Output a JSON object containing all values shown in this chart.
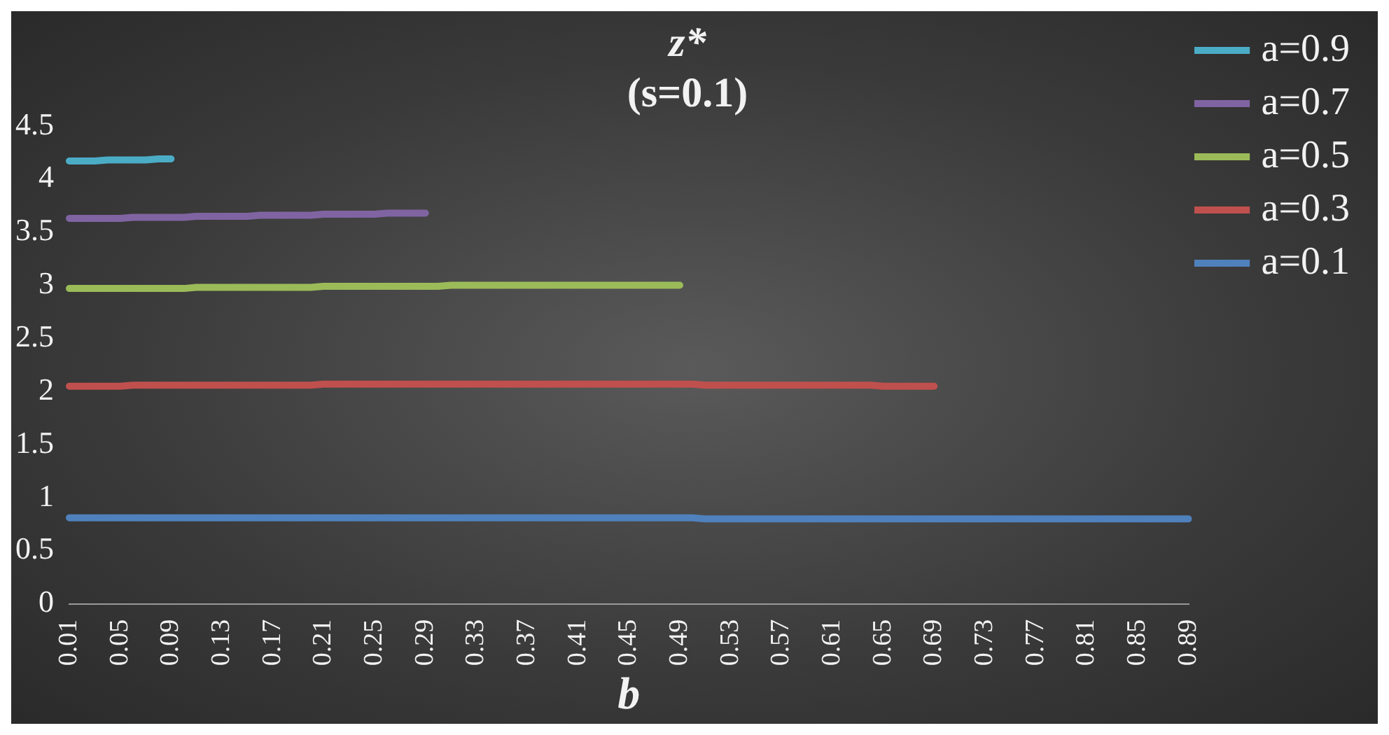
{
  "chart_data": {
    "type": "line",
    "title": "z*",
    "subtitle": "(s=0.1)",
    "xlabel": "b",
    "categories": [
      "0.01",
      null,
      null,
      null,
      "0.05",
      null,
      null,
      null,
      "0.09",
      null,
      null,
      null,
      "0.13",
      null,
      null,
      null,
      "0.17",
      null,
      null,
      null,
      "0.21",
      null,
      null,
      null,
      "0.25",
      null,
      null,
      null,
      "0.29",
      null,
      null,
      null,
      "0.33",
      null,
      null,
      null,
      "0.37",
      null,
      null,
      null,
      "0.41",
      null,
      null,
      null,
      "0.45",
      null,
      null,
      null,
      "0.49",
      null,
      null,
      null,
      "0.53",
      null,
      null,
      null,
      "0.57",
      null,
      null,
      null,
      "0.61",
      null,
      null,
      null,
      "0.65",
      null,
      null,
      null,
      "0.69",
      null,
      null,
      null,
      "0.73",
      null,
      null,
      null,
      "0.77",
      null,
      null,
      null,
      "0.81",
      null,
      null,
      null,
      "0.85",
      null,
      null,
      null,
      "0.89"
    ],
    "series": [
      {
        "name": "a=0.9",
        "color": "#4bacc6",
        "values": [
          4.17,
          4.17,
          4.17,
          4.18,
          4.18,
          4.18,
          4.18,
          4.19,
          4.19,
          null,
          null,
          null,
          null,
          null,
          null,
          null,
          null,
          null,
          null,
          null,
          null,
          null,
          null,
          null,
          null,
          null,
          null,
          null,
          null,
          null,
          null,
          null,
          null,
          null,
          null,
          null,
          null,
          null,
          null,
          null,
          null,
          null,
          null,
          null,
          null,
          null,
          null,
          null,
          null,
          null,
          null,
          null,
          null,
          null,
          null,
          null,
          null,
          null,
          null,
          null,
          null,
          null,
          null,
          null,
          null,
          null,
          null,
          null,
          null,
          null,
          null,
          null,
          null,
          null,
          null,
          null,
          null,
          null,
          null,
          null,
          null,
          null,
          null,
          null,
          null,
          null,
          null,
          null,
          null
        ]
      },
      {
        "name": "a=0.7",
        "color": "#8064a2",
        "values": [
          3.63,
          3.63,
          3.63,
          3.63,
          3.63,
          3.64,
          3.64,
          3.64,
          3.64,
          3.64,
          3.65,
          3.65,
          3.65,
          3.65,
          3.65,
          3.66,
          3.66,
          3.66,
          3.66,
          3.66,
          3.67,
          3.67,
          3.67,
          3.67,
          3.67,
          3.68,
          3.68,
          3.68,
          3.68,
          null,
          null,
          null,
          null,
          null,
          null,
          null,
          null,
          null,
          null,
          null,
          null,
          null,
          null,
          null,
          null,
          null,
          null,
          null,
          null,
          null,
          null,
          null,
          null,
          null,
          null,
          null,
          null,
          null,
          null,
          null,
          null,
          null,
          null,
          null,
          null,
          null,
          null,
          null,
          null,
          null,
          null,
          null,
          null,
          null,
          null,
          null,
          null,
          null,
          null,
          null,
          null,
          null,
          null,
          null,
          null,
          null,
          null,
          null,
          null
        ]
      },
      {
        "name": "a=0.5",
        "color": "#9bbb59",
        "values": [
          2.97,
          2.97,
          2.97,
          2.97,
          2.97,
          2.97,
          2.97,
          2.97,
          2.97,
          2.97,
          2.98,
          2.98,
          2.98,
          2.98,
          2.98,
          2.98,
          2.98,
          2.98,
          2.98,
          2.98,
          2.99,
          2.99,
          2.99,
          2.99,
          2.99,
          2.99,
          2.99,
          2.99,
          2.99,
          2.99,
          3.0,
          3.0,
          3.0,
          3.0,
          3.0,
          3.0,
          3.0,
          3.0,
          3.0,
          3.0,
          3.0,
          3.0,
          3.0,
          3.0,
          3.0,
          3.0,
          3.0,
          3.0,
          3.0,
          null,
          null,
          null,
          null,
          null,
          null,
          null,
          null,
          null,
          null,
          null,
          null,
          null,
          null,
          null,
          null,
          null,
          null,
          null,
          null,
          null,
          null,
          null,
          null,
          null,
          null,
          null,
          null,
          null,
          null,
          null,
          null,
          null,
          null,
          null,
          null,
          null,
          null,
          null,
          null
        ]
      },
      {
        "name": "a=0.3",
        "color": "#c0504d",
        "values": [
          2.05,
          2.05,
          2.05,
          2.05,
          2.05,
          2.06,
          2.06,
          2.06,
          2.06,
          2.06,
          2.06,
          2.06,
          2.06,
          2.06,
          2.06,
          2.06,
          2.06,
          2.06,
          2.06,
          2.06,
          2.07,
          2.07,
          2.07,
          2.07,
          2.07,
          2.07,
          2.07,
          2.07,
          2.07,
          2.07,
          2.07,
          2.07,
          2.07,
          2.07,
          2.07,
          2.07,
          2.07,
          2.07,
          2.07,
          2.07,
          2.07,
          2.07,
          2.07,
          2.07,
          2.07,
          2.07,
          2.07,
          2.07,
          2.07,
          2.07,
          2.06,
          2.06,
          2.06,
          2.06,
          2.06,
          2.06,
          2.06,
          2.06,
          2.06,
          2.06,
          2.06,
          2.06,
          2.06,
          2.06,
          2.05,
          2.05,
          2.05,
          2.05,
          2.05,
          null,
          null,
          null,
          null,
          null,
          null,
          null,
          null,
          null,
          null,
          null,
          null,
          null,
          null,
          null,
          null,
          null,
          null,
          null,
          null
        ]
      },
      {
        "name": "a=0.1",
        "color": "#4f81bd",
        "values": [
          0.81,
          0.81,
          0.81,
          0.81,
          0.81,
          0.81,
          0.81,
          0.81,
          0.81,
          0.81,
          0.81,
          0.81,
          0.81,
          0.81,
          0.81,
          0.81,
          0.81,
          0.81,
          0.81,
          0.81,
          0.81,
          0.81,
          0.81,
          0.81,
          0.81,
          0.81,
          0.81,
          0.81,
          0.81,
          0.81,
          0.81,
          0.81,
          0.81,
          0.81,
          0.81,
          0.81,
          0.81,
          0.81,
          0.81,
          0.81,
          0.81,
          0.81,
          0.81,
          0.81,
          0.81,
          0.81,
          0.81,
          0.81,
          0.81,
          0.81,
          0.8,
          0.8,
          0.8,
          0.8,
          0.8,
          0.8,
          0.8,
          0.8,
          0.8,
          0.8,
          0.8,
          0.8,
          0.8,
          0.8,
          0.8,
          0.8,
          0.8,
          0.8,
          0.8,
          0.8,
          0.8,
          0.8,
          0.8,
          0.8,
          0.8,
          0.8,
          0.8,
          0.8,
          0.8,
          0.8,
          0.8,
          0.8,
          0.8,
          0.8,
          0.8,
          0.8,
          0.8,
          0.8,
          0.8
        ]
      }
    ],
    "ylim": [
      0,
      4.5
    ],
    "yticks": [
      0,
      0.5,
      1,
      1.5,
      2,
      2.5,
      3,
      3.5,
      4,
      4.5
    ],
    "legend": "right",
    "marker": "none",
    "line_style": "solid"
  }
}
